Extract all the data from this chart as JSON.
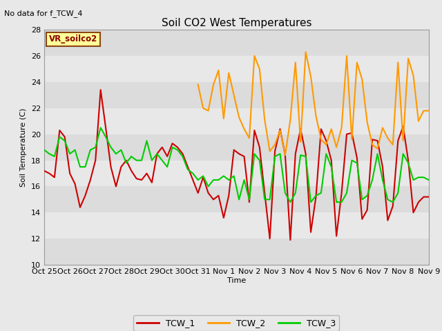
{
  "title": "Soil CO2 West Temperatures",
  "no_data_label": "No data for f_TCW_4",
  "vr_label": "VR_soilco2",
  "xlabel": "Time",
  "ylabel": "Soil Temperature (C)",
  "ylim": [
    10,
    28
  ],
  "yticks": [
    10,
    12,
    14,
    16,
    18,
    20,
    22,
    24,
    26,
    28
  ],
  "bg_color": "#e8e8e8",
  "plot_bg_color": "#f0f0f0",
  "xtick_labels": [
    "Oct 25",
    "Oct 26",
    "Oct 27",
    "Oct 28",
    "Oct 29",
    "Oct 30",
    "Oct 31",
    "Nov 1",
    "Nov 2",
    "Nov 3",
    "Nov 4",
    "Nov 5",
    "Nov 6",
    "Nov 7",
    "Nov 8",
    "Nov 9"
  ],
  "tcw1_color": "#cc0000",
  "tcw2_color": "#ff9900",
  "tcw3_color": "#00cc00",
  "line_width": 1.5,
  "tcw1_x": [
    0,
    0.2,
    0.4,
    0.6,
    0.8,
    1.0,
    1.2,
    1.4,
    1.6,
    1.8,
    2.0,
    2.2,
    2.4,
    2.6,
    2.8,
    3.0,
    3.2,
    3.4,
    3.6,
    3.8,
    4.0,
    4.2,
    4.4,
    4.6,
    4.8,
    5.0,
    5.2,
    5.4,
    5.6,
    5.8,
    6.0,
    6.2,
    6.4,
    6.6,
    6.8,
    7.0,
    7.2,
    7.4,
    7.6,
    7.8,
    8.0,
    8.2,
    8.4,
    8.6,
    8.8,
    9.0,
    9.2,
    9.4,
    9.6,
    9.8,
    10.0,
    10.2,
    10.4,
    10.6,
    10.8,
    11.0,
    11.2,
    11.4,
    11.6,
    11.8,
    12.0,
    12.2,
    12.4,
    12.6,
    12.8,
    13.0,
    13.2,
    13.4,
    13.6,
    13.8,
    14.0,
    14.2,
    14.4,
    14.6,
    14.8,
    15.0
  ],
  "tcw1_y": [
    17.2,
    17.0,
    16.7,
    20.3,
    19.8,
    17.0,
    16.2,
    14.4,
    15.3,
    16.5,
    18.0,
    23.4,
    20.5,
    17.5,
    16.0,
    17.5,
    18.0,
    17.2,
    16.6,
    16.5,
    17.0,
    16.3,
    18.5,
    19.0,
    18.3,
    19.3,
    19.0,
    18.5,
    17.5,
    16.5,
    15.5,
    16.7,
    15.5,
    15.0,
    15.3,
    13.6,
    15.3,
    18.8,
    18.5,
    18.3,
    14.8,
    20.3,
    19.0,
    15.5,
    12.0,
    18.7,
    20.4,
    18.4,
    11.9,
    18.5,
    20.4,
    18.5,
    12.5,
    15.2,
    20.4,
    19.5,
    18.0,
    12.2,
    15.5,
    20.0,
    20.1,
    18.2,
    13.5,
    14.2,
    19.6,
    19.5,
    17.5,
    13.4,
    14.5,
    19.5,
    20.6,
    18.0,
    14.0,
    14.8,
    15.2,
    15.2
  ],
  "tcw2_x": [
    6.0,
    6.2,
    6.4,
    6.6,
    6.8,
    7.0,
    7.2,
    7.4,
    7.6,
    7.8,
    8.0,
    8.2,
    8.4,
    8.6,
    8.8,
    9.0,
    9.2,
    9.4,
    9.6,
    9.8,
    10.0,
    10.2,
    10.4,
    10.6,
    10.8,
    11.0,
    11.2,
    11.4,
    11.6,
    11.8,
    12.0,
    12.2,
    12.4,
    12.6,
    12.8,
    13.0,
    13.2,
    13.4,
    13.6,
    13.8,
    14.0,
    14.2,
    14.4,
    14.6,
    14.8,
    15.0
  ],
  "tcw2_y": [
    23.8,
    22.0,
    21.8,
    23.8,
    24.9,
    21.2,
    24.7,
    23.0,
    21.3,
    20.4,
    19.7,
    26.0,
    25.0,
    21.1,
    18.7,
    19.2,
    20.3,
    18.4,
    21.1,
    25.5,
    19.4,
    26.3,
    24.4,
    21.4,
    19.6,
    19.2,
    20.4,
    19.0,
    20.5,
    26.0,
    19.6,
    25.5,
    24.2,
    20.9,
    19.2,
    18.9,
    20.5,
    19.7,
    19.2,
    25.5,
    19.5,
    25.8,
    24.5,
    21.0,
    21.8,
    21.8
  ],
  "tcw3_x": [
    0,
    0.2,
    0.4,
    0.6,
    0.8,
    1.0,
    1.2,
    1.4,
    1.6,
    1.8,
    2.0,
    2.2,
    2.4,
    2.6,
    2.8,
    3.0,
    3.2,
    3.4,
    3.6,
    3.8,
    4.0,
    4.2,
    4.4,
    4.6,
    4.8,
    5.0,
    5.2,
    5.4,
    5.6,
    5.8,
    6.0,
    6.2,
    6.4,
    6.6,
    6.8,
    7.0,
    7.2,
    7.4,
    7.6,
    7.8,
    8.0,
    8.2,
    8.4,
    8.6,
    8.8,
    9.0,
    9.2,
    9.4,
    9.6,
    9.8,
    10.0,
    10.2,
    10.4,
    10.6,
    10.8,
    11.0,
    11.2,
    11.4,
    11.6,
    11.8,
    12.0,
    12.2,
    12.4,
    12.6,
    12.8,
    13.0,
    13.2,
    13.4,
    13.6,
    13.8,
    14.0,
    14.2,
    14.4,
    14.6,
    14.8,
    15.0
  ],
  "tcw3_y": [
    18.8,
    18.5,
    18.3,
    19.8,
    19.5,
    18.5,
    18.8,
    17.5,
    17.5,
    18.8,
    19.0,
    20.5,
    19.8,
    19.0,
    18.5,
    18.8,
    17.8,
    18.3,
    18.0,
    18.0,
    19.5,
    18.0,
    18.5,
    18.0,
    17.5,
    19.0,
    18.8,
    18.3,
    17.3,
    17.0,
    16.5,
    16.8,
    16.0,
    16.5,
    16.5,
    16.8,
    16.5,
    16.8,
    15.0,
    16.5,
    15.0,
    18.5,
    18.0,
    15.0,
    15.0,
    18.3,
    18.5,
    15.5,
    14.8,
    15.5,
    18.4,
    18.3,
    14.8,
    15.3,
    15.5,
    18.5,
    17.5,
    14.8,
    14.8,
    15.5,
    18.0,
    17.8,
    15.0,
    15.3,
    16.5,
    18.5,
    16.5,
    15.0,
    14.8,
    15.5,
    18.5,
    17.8,
    16.5,
    16.7,
    16.7,
    16.5
  ]
}
